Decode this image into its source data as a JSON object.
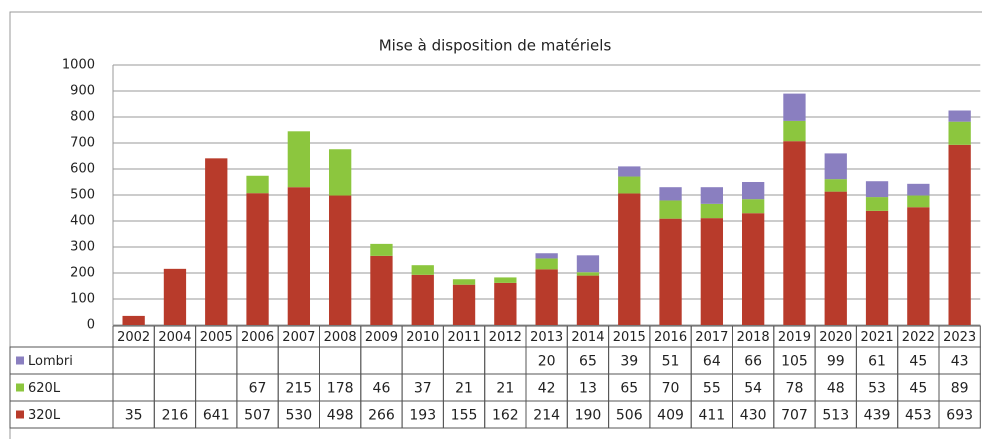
{
  "chart_data": {
    "type": "stacked_bar",
    "title": "Mise à disposition de matériels",
    "categories": [
      "2002",
      "2004",
      "2005",
      "2006",
      "2007",
      "2008",
      "2009",
      "2010",
      "2011",
      "2012",
      "2013",
      "2014",
      "2015",
      "2016",
      "2017",
      "2018",
      "2019",
      "2020",
      "2021",
      "2022",
      "2023"
    ],
    "series": [
      {
        "name": "320L",
        "color": "#b83b2b",
        "values": [
          35,
          216,
          641,
          507,
          530,
          498,
          266,
          193,
          155,
          162,
          214,
          190,
          506,
          409,
          411,
          430,
          707,
          513,
          439,
          453,
          693
        ]
      },
      {
        "name": "620L",
        "color": "#8cc63e",
        "values": [
          null,
          null,
          null,
          67,
          215,
          178,
          46,
          37,
          21,
          21,
          42,
          13,
          65,
          70,
          55,
          54,
          78,
          48,
          53,
          45,
          89
        ]
      },
      {
        "name": "Lombri",
        "color": "#8a7fc0",
        "values": [
          null,
          null,
          null,
          null,
          null,
          null,
          null,
          null,
          null,
          null,
          20,
          65,
          39,
          51,
          64,
          66,
          105,
          99,
          61,
          45,
          43
        ]
      }
    ],
    "ylim": [
      0,
      1000
    ],
    "yticks": [
      0,
      100,
      200,
      300,
      400,
      500,
      600,
      700,
      800,
      900,
      1000
    ],
    "grid": true
  }
}
